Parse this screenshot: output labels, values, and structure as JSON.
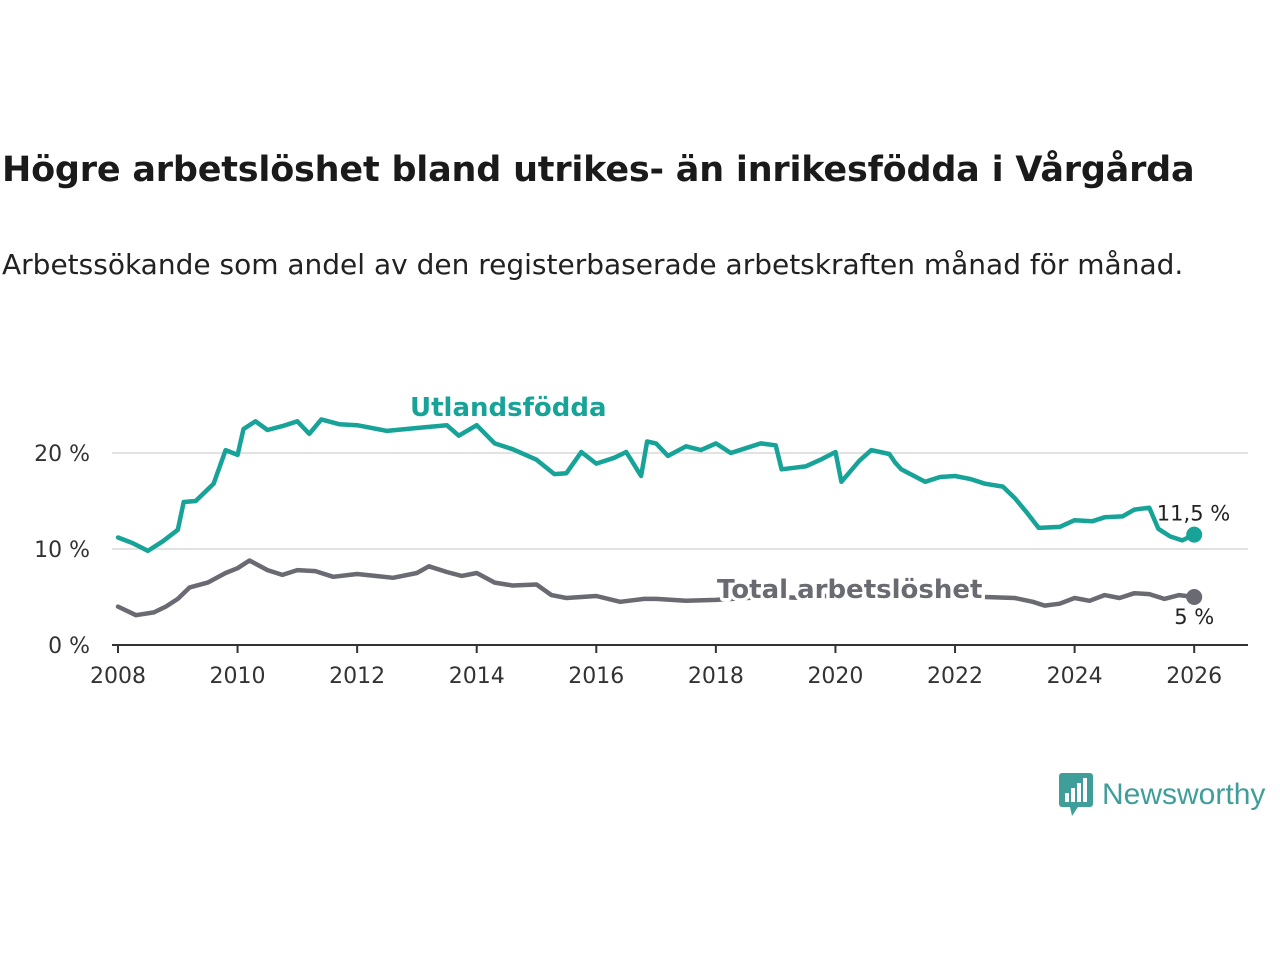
{
  "title": "Högre arbetslöshet bland utrikes- än inrikesfödda i Vårgårda",
  "subtitle": "Arbetssökande som andel av den registerbaserade arbetskraften månad för månad.",
  "brand": {
    "name": "Newsworthy",
    "color": "#3f9e9a"
  },
  "chart_data": {
    "type": "line",
    "title": "Högre arbetslöshet bland utrikes- än inrikesfödda i Vårgårda",
    "xlabel": "",
    "ylabel": "",
    "xlim": [
      2007.9,
      2026.9
    ],
    "ylim": [
      0,
      25
    ],
    "y_ticks": [
      0,
      10,
      20
    ],
    "y_tick_labels": [
      "0 %",
      "10 %",
      "20 %"
    ],
    "x_ticks": [
      2008,
      2010,
      2012,
      2014,
      2016,
      2018,
      2020,
      2022,
      2024,
      2026
    ],
    "x_tick_labels": [
      "2008",
      "2010",
      "2012",
      "2014",
      "2016",
      "2018",
      "2020",
      "2022",
      "2024",
      "2026"
    ],
    "grid": true,
    "series": [
      {
        "name": "Utlandsfödda",
        "color": "#17a398",
        "end_label": "11,5 %",
        "points": [
          [
            2008.0,
            11.2
          ],
          [
            2008.25,
            10.6
          ],
          [
            2008.5,
            9.8
          ],
          [
            2008.75,
            10.8
          ],
          [
            2009.0,
            12.0
          ],
          [
            2009.1,
            14.9
          ],
          [
            2009.3,
            15.0
          ],
          [
            2009.6,
            16.8
          ],
          [
            2009.8,
            20.3
          ],
          [
            2010.0,
            19.8
          ],
          [
            2010.1,
            22.5
          ],
          [
            2010.3,
            23.3
          ],
          [
            2010.5,
            22.4
          ],
          [
            2010.75,
            22.8
          ],
          [
            2011.0,
            23.3
          ],
          [
            2011.2,
            22.0
          ],
          [
            2011.4,
            23.5
          ],
          [
            2011.7,
            23.0
          ],
          [
            2012.0,
            22.9
          ],
          [
            2012.5,
            22.3
          ],
          [
            2013.0,
            22.6
          ],
          [
            2013.5,
            22.9
          ],
          [
            2013.7,
            21.8
          ],
          [
            2014.0,
            22.9
          ],
          [
            2014.3,
            21.0
          ],
          [
            2014.6,
            20.4
          ],
          [
            2015.0,
            19.3
          ],
          [
            2015.3,
            17.8
          ],
          [
            2015.5,
            17.9
          ],
          [
            2015.75,
            20.1
          ],
          [
            2016.0,
            18.9
          ],
          [
            2016.3,
            19.5
          ],
          [
            2016.5,
            20.1
          ],
          [
            2016.75,
            17.6
          ],
          [
            2016.85,
            21.2
          ],
          [
            2017.0,
            21.0
          ],
          [
            2017.2,
            19.7
          ],
          [
            2017.5,
            20.7
          ],
          [
            2017.75,
            20.3
          ],
          [
            2018.0,
            21.0
          ],
          [
            2018.25,
            20.0
          ],
          [
            2018.5,
            20.5
          ],
          [
            2018.75,
            21.0
          ],
          [
            2019.0,
            20.8
          ],
          [
            2019.1,
            18.3
          ],
          [
            2019.5,
            18.6
          ],
          [
            2019.75,
            19.3
          ],
          [
            2020.0,
            20.1
          ],
          [
            2020.1,
            17.0
          ],
          [
            2020.4,
            19.2
          ],
          [
            2020.6,
            20.3
          ],
          [
            2020.9,
            19.9
          ],
          [
            2021.0,
            19.0
          ],
          [
            2021.1,
            18.3
          ],
          [
            2021.5,
            17.0
          ],
          [
            2021.75,
            17.5
          ],
          [
            2022.0,
            17.6
          ],
          [
            2022.25,
            17.3
          ],
          [
            2022.5,
            16.8
          ],
          [
            2022.8,
            16.5
          ],
          [
            2023.0,
            15.3
          ],
          [
            2023.2,
            13.8
          ],
          [
            2023.4,
            12.2
          ],
          [
            2023.75,
            12.3
          ],
          [
            2024.0,
            13.0
          ],
          [
            2024.3,
            12.9
          ],
          [
            2024.5,
            13.3
          ],
          [
            2024.8,
            13.4
          ],
          [
            2025.0,
            14.1
          ],
          [
            2025.25,
            14.3
          ],
          [
            2025.4,
            12.1
          ],
          [
            2025.6,
            11.3
          ],
          [
            2025.8,
            10.9
          ],
          [
            2026.0,
            11.5
          ]
        ]
      },
      {
        "name": "Total arbetslöshet",
        "color": "#6a6a72",
        "end_label": "5 %",
        "points": [
          [
            2008.0,
            4.0
          ],
          [
            2008.3,
            3.1
          ],
          [
            2008.6,
            3.4
          ],
          [
            2008.8,
            4.0
          ],
          [
            2009.0,
            4.8
          ],
          [
            2009.2,
            6.0
          ],
          [
            2009.5,
            6.5
          ],
          [
            2009.8,
            7.5
          ],
          [
            2010.0,
            8.0
          ],
          [
            2010.2,
            8.8
          ],
          [
            2010.5,
            7.8
          ],
          [
            2010.75,
            7.3
          ],
          [
            2011.0,
            7.8
          ],
          [
            2011.3,
            7.7
          ],
          [
            2011.6,
            7.1
          ],
          [
            2012.0,
            7.4
          ],
          [
            2012.3,
            7.2
          ],
          [
            2012.6,
            7.0
          ],
          [
            2013.0,
            7.5
          ],
          [
            2013.2,
            8.2
          ],
          [
            2013.5,
            7.6
          ],
          [
            2013.75,
            7.2
          ],
          [
            2014.0,
            7.5
          ],
          [
            2014.3,
            6.5
          ],
          [
            2014.6,
            6.2
          ],
          [
            2015.0,
            6.3
          ],
          [
            2015.25,
            5.2
          ],
          [
            2015.5,
            4.9
          ],
          [
            2016.0,
            5.1
          ],
          [
            2016.4,
            4.5
          ],
          [
            2016.8,
            4.8
          ],
          [
            2017.0,
            4.8
          ],
          [
            2017.5,
            4.6
          ],
          [
            2018.0,
            4.7
          ],
          [
            2018.5,
            4.9
          ],
          [
            2019.0,
            5.0
          ],
          [
            2019.5,
            4.9
          ],
          [
            2020.0,
            5.2
          ],
          [
            2020.5,
            5.6
          ],
          [
            2021.0,
            5.3
          ],
          [
            2021.5,
            5.0
          ],
          [
            2022.0,
            5.2
          ],
          [
            2022.5,
            5.0
          ],
          [
            2023.0,
            4.9
          ],
          [
            2023.3,
            4.5
          ],
          [
            2023.5,
            4.1
          ],
          [
            2023.75,
            4.3
          ],
          [
            2024.0,
            4.9
          ],
          [
            2024.25,
            4.6
          ],
          [
            2024.5,
            5.2
          ],
          [
            2024.75,
            4.9
          ],
          [
            2025.0,
            5.4
          ],
          [
            2025.25,
            5.3
          ],
          [
            2025.5,
            4.8
          ],
          [
            2025.75,
            5.2
          ],
          [
            2026.0,
            5.0
          ]
        ]
      }
    ]
  }
}
